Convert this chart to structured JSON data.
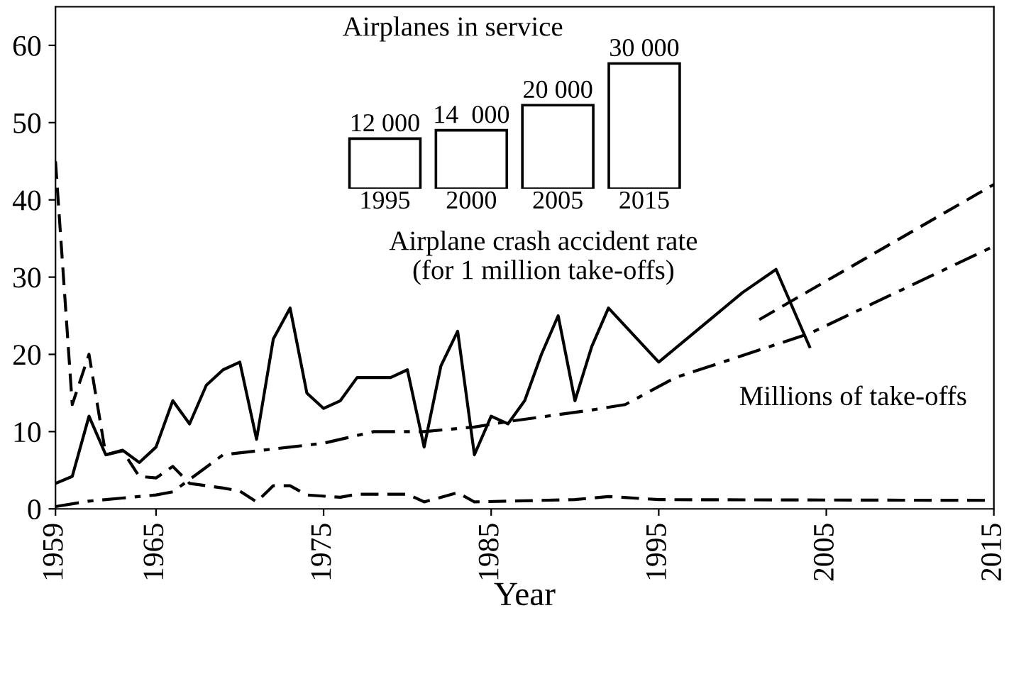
{
  "chart_data": [
    {
      "type": "line",
      "xlabel": "Year",
      "xlim": [
        1959,
        2015
      ],
      "xticks": [
        1959,
        1965,
        1975,
        1985,
        1995,
        2005,
        2015
      ],
      "ylim": [
        0,
        65
      ],
      "yticks": [
        0,
        10,
        20,
        30,
        40,
        50,
        60
      ],
      "grid": false,
      "legend": false,
      "marker": "none",
      "annotations": [
        "Airplane crash accident rate\n(for 1 million take-offs)",
        "Millions of take-offs"
      ],
      "series": [
        {
          "color": "#000000",
          "line_style": "solid",
          "x": [
            1959,
            1960,
            1961,
            1962,
            1963,
            1964,
            1965,
            1966,
            1967,
            1968,
            1969,
            1970,
            1971,
            1972,
            1973,
            1974,
            1975,
            1976,
            1977,
            1978,
            1979,
            1980,
            1981,
            1982,
            1983,
            1984,
            1985,
            1986,
            1987,
            1988,
            1989,
            1990,
            1991,
            1992,
            1995,
            2000,
            2002,
            2004
          ],
          "values": [
            3.3,
            4.2,
            12,
            7,
            7.6,
            6,
            8,
            14,
            11,
            16,
            18,
            19,
            9,
            22,
            26,
            15,
            13,
            14,
            17,
            17,
            17,
            18,
            8,
            18.5,
            23,
            7,
            12,
            11,
            14,
            20,
            25,
            14,
            21,
            26,
            19,
            28,
            31,
            21
          ]
        },
        {
          "color": "#000000",
          "line_style": "dashed",
          "x": [
            1959,
            1960,
            1961,
            1962,
            1963,
            1964,
            1965,
            1966,
            1967,
            1969,
            1970,
            1971,
            1972,
            1973,
            1974,
            1976,
            1977,
            1980,
            1981,
            1983,
            1984,
            1990,
            1992,
            1995,
            2015
          ],
          "values": [
            45,
            13.5,
            20,
            7,
            7.5,
            4.2,
            4,
            5.5,
            3.3,
            2.7,
            2.3,
            0.9,
            3,
            3,
            1.8,
            1.5,
            1.9,
            1.9,
            0.9,
            2.1,
            0.9,
            1.2,
            1.6,
            1.2,
            1.1
          ]
        },
        {
          "color": "#000000",
          "line_style": "dashdot",
          "x": [
            1959,
            1961,
            1963,
            1965,
            1966,
            1969,
            1973,
            1975,
            1978,
            1981,
            1984,
            1986,
            1991,
            1993,
            1996,
            2004,
            2015
          ],
          "values": [
            0.3,
            1,
            1.4,
            1.8,
            2.2,
            7,
            8,
            8.5,
            10,
            10,
            10.6,
            11.3,
            12.8,
            13.5,
            17,
            22.7,
            34
          ]
        },
        {
          "color": "#000000",
          "line_style": "dashed",
          "x": [
            2001,
            2015
          ],
          "values": [
            24.5,
            42
          ]
        }
      ]
    },
    {
      "type": "bar",
      "title": "Airplanes in service",
      "categories": [
        "1995",
        "2000",
        "2005",
        "2015"
      ],
      "values": [
        12000,
        14000,
        20000,
        30000
      ],
      "value_labels": [
        "12 000",
        "14  000",
        "20 000",
        "30 000"
      ],
      "color": "#ffffff",
      "tick_labels": "x"
    }
  ]
}
